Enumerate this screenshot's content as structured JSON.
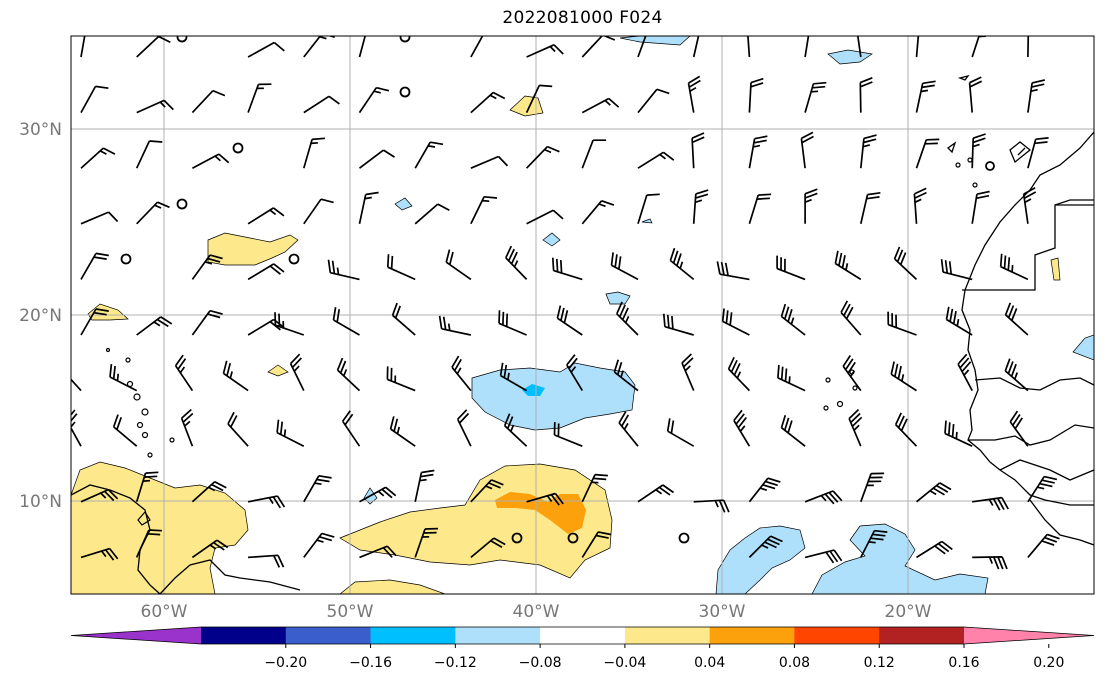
{
  "title": "2022081000 F024",
  "map": {
    "lon_range": [
      -65,
      -10.5
    ],
    "lat_range": [
      5,
      35
    ],
    "lat_labels": [
      "30°N",
      "20°N",
      "10°N"
    ],
    "lon_labels": [
      "60°W",
      "50°W",
      "40°W",
      "30°W",
      "20°W"
    ],
    "gridlines": true,
    "fill_colors": {
      "pos_0.04_0.08": "#fde98b",
      "pos_0.08_0.12": "#fca00c",
      "neg_0.04_0.08": "#afe0fb",
      "neg_0.08_0.12": "#00bfff"
    },
    "wind_barbs": "black",
    "calm_circles": "black"
  },
  "colorbar": {
    "colors": [
      "#9933cc",
      "#00008b",
      "#3a5fcd",
      "#00bfff",
      "#afe0fb",
      "#ffffff",
      "#fde98b",
      "#fca00c",
      "#ff4500",
      "#b22222",
      "#ff82ab"
    ],
    "labels": [
      "−0.20",
      "−0.16",
      "−0.12",
      "−0.08",
      "−0.04",
      "0.04",
      "0.08",
      "0.12",
      "0.16",
      "0.20"
    ],
    "extend": "both"
  }
}
